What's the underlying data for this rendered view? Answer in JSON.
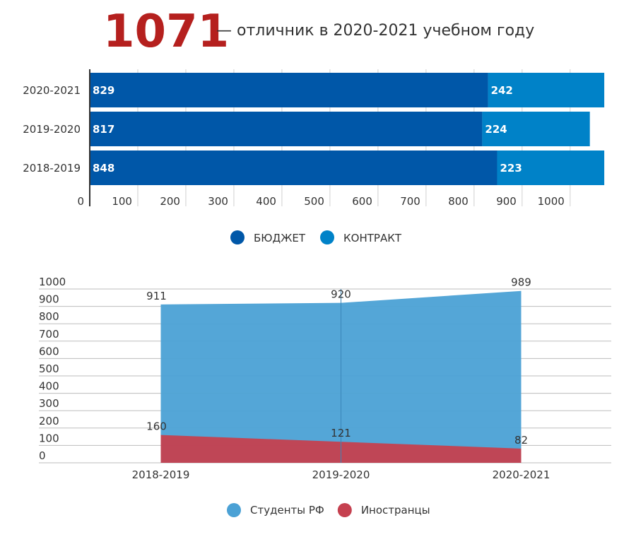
{
  "header": {
    "number": "1071",
    "text": "— отличник в 2020-2021 учебном году"
  },
  "chart_data": [
    {
      "type": "hbar_stacked",
      "categories": [
        "2020-2021",
        "2019-2020",
        "2018-2019"
      ],
      "series": [
        {
          "name": "БЮДЖЕТ",
          "color": "#0057a8",
          "values": [
            829,
            817,
            848
          ]
        },
        {
          "name": "КОНТРАКТ",
          "color": "#0082c8",
          "values": [
            242,
            224,
            223
          ]
        }
      ],
      "xlim": [
        0,
        1090
      ],
      "xticks": [
        0,
        100,
        200,
        300,
        400,
        500,
        600,
        700,
        800,
        900,
        1000
      ],
      "grid": true
    },
    {
      "type": "area",
      "categories": [
        "2018-2019",
        "2019-2020",
        "2020-2021"
      ],
      "series": [
        {
          "name": "Студенты РФ",
          "color": "#4ba1d5",
          "values": [
            911,
            920,
            989
          ]
        },
        {
          "name": "Иностранцы",
          "color": "#c5404f",
          "values": [
            160,
            121,
            82
          ]
        }
      ],
      "ylim": [
        0,
        1000
      ],
      "yticks": [
        0,
        100,
        200,
        300,
        400,
        500,
        600,
        700,
        800,
        900,
        1000
      ],
      "grid": true
    }
  ]
}
